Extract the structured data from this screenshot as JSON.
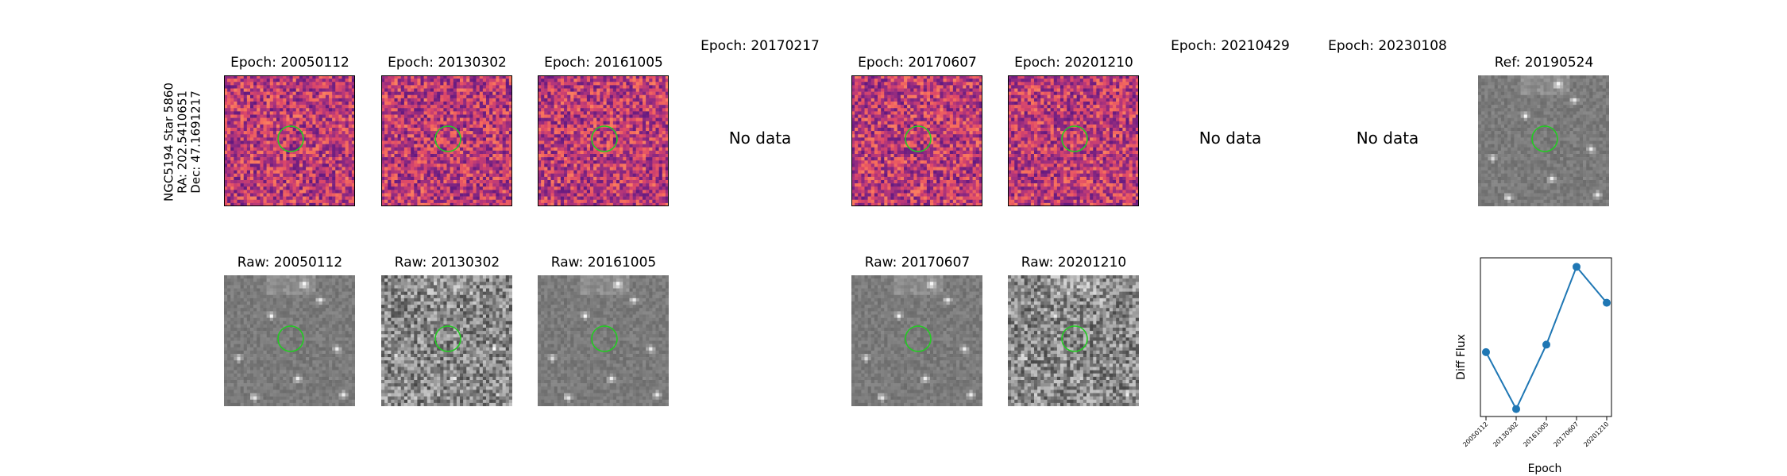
{
  "star_info": {
    "name": "NGC5194 Star 5860",
    "ra": "RA: 202.5410651",
    "dec": "Dec: 47.1691217"
  },
  "epoch_panels": [
    {
      "title": "Epoch: 20050112",
      "has_data": true
    },
    {
      "title": "Epoch: 20130302",
      "has_data": true
    },
    {
      "title": "Epoch: 20161005",
      "has_data": true
    },
    {
      "title": "Epoch: 20170217",
      "has_data": false
    },
    {
      "title": "Epoch: 20170607",
      "has_data": true
    },
    {
      "title": "Epoch: 20201210",
      "has_data": true
    },
    {
      "title": "Epoch: 20210429",
      "has_data": false
    },
    {
      "title": "Epoch: 20230108",
      "has_data": false
    }
  ],
  "no_data_label": "No data",
  "reference_panel": {
    "title": "Ref: 20190524"
  },
  "raw_panels": [
    {
      "title": "Raw: 20050112"
    },
    {
      "title": "Raw: 20130302"
    },
    {
      "title": "Raw: 20161005"
    },
    {
      "title": "Raw: 20170607"
    },
    {
      "title": "Raw: 20201210"
    }
  ],
  "colors": {
    "aperture_circle": "#22cc22",
    "line_series": "#1f77b4"
  },
  "chart_data": {
    "type": "line",
    "categories": [
      "20050112",
      "20130302",
      "20161005",
      "20170607",
      "20201210"
    ],
    "values": [
      0.43,
      0.05,
      0.48,
      1.0,
      0.76
    ],
    "title": "",
    "xlabel": "Epoch",
    "ylabel": "Diff Flux",
    "ylim": [
      0,
      1.06
    ],
    "yticks_visible": false,
    "grid": false
  }
}
